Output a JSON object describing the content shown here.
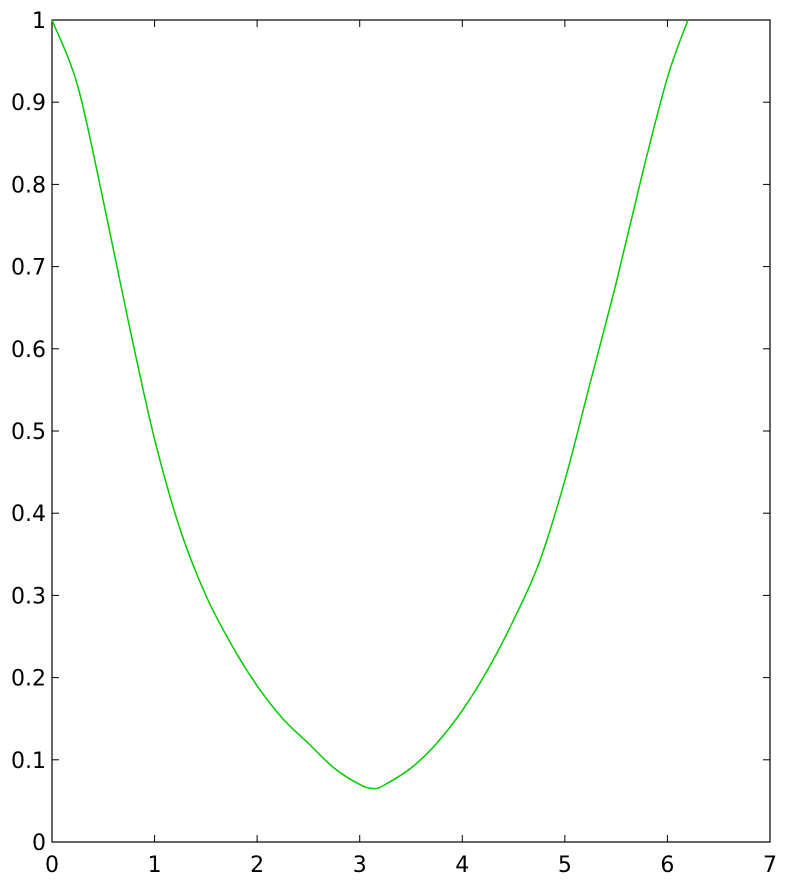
{
  "chart_data": {
    "type": "line",
    "title": "",
    "xlabel": "",
    "ylabel": "",
    "xlim": [
      0,
      7
    ],
    "ylim": [
      0,
      1
    ],
    "grid": false,
    "x_ticks": [
      0,
      1,
      2,
      3,
      4,
      5,
      6,
      7
    ],
    "x_tick_labels": [
      "0",
      "1",
      "2",
      "3",
      "4",
      "5",
      "6",
      "7"
    ],
    "y_ticks": [
      0,
      0.1,
      0.2,
      0.3,
      0.4,
      0.5,
      0.6,
      0.7,
      0.8,
      0.9,
      1
    ],
    "y_tick_labels": [
      "0",
      "0.1",
      "0.2",
      "0.3",
      "0.4",
      "0.5",
      "0.6",
      "0.7",
      "0.8",
      "0.9",
      "1"
    ],
    "series": [
      {
        "color": "#00cc00",
        "x": [
          0,
          0.25,
          0.5,
          0.75,
          1.0,
          1.25,
          1.5,
          1.75,
          2.0,
          2.25,
          2.5,
          2.75,
          3.0,
          3.14,
          3.25,
          3.5,
          3.75,
          4.0,
          4.25,
          4.5,
          4.75,
          5.0,
          5.25,
          5.5,
          5.75,
          6.0,
          6.2
        ],
        "y": [
          1.0,
          0.92,
          0.78,
          0.63,
          0.49,
          0.38,
          0.3,
          0.24,
          0.19,
          0.15,
          0.12,
          0.09,
          0.07,
          0.065,
          0.07,
          0.09,
          0.12,
          0.16,
          0.21,
          0.27,
          0.34,
          0.44,
          0.56,
          0.68,
          0.81,
          0.93,
          1.0
        ]
      }
    ]
  }
}
